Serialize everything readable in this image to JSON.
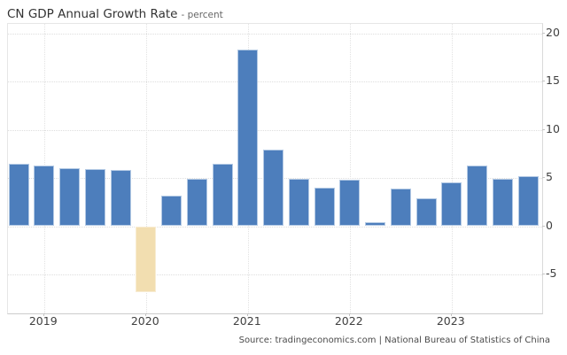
{
  "header": {
    "title": "CN GDP Annual Growth Rate",
    "subtitle": "- percent"
  },
  "source": {
    "text": "Source: tradingeconomics.com | National Bureau of Statistics of China"
  },
  "chart_data": {
    "type": "bar",
    "title": "CN GDP Annual Growth Rate",
    "unit": "percent",
    "x": [
      "2018-Q4",
      "2019-Q1",
      "2019-Q2",
      "2019-Q3",
      "2019-Q4",
      "2020-Q1",
      "2020-Q2",
      "2020-Q3",
      "2020-Q4",
      "2021-Q1",
      "2021-Q2",
      "2021-Q3",
      "2021-Q4",
      "2022-Q1",
      "2022-Q2",
      "2022-Q3",
      "2022-Q4",
      "2023-Q1",
      "2023-Q2",
      "2023-Q3",
      "2023-Q4"
    ],
    "values": [
      6.5,
      6.3,
      6.0,
      5.9,
      5.8,
      -6.8,
      3.2,
      4.9,
      6.5,
      18.3,
      7.9,
      4.9,
      4.0,
      4.8,
      0.4,
      3.9,
      2.9,
      4.5,
      6.3,
      4.9,
      5.2
    ],
    "series_name": "GDP Annual Growth Rate YoY",
    "xlabel": "",
    "ylabel": "percent",
    "ylim": [
      -9,
      21
    ],
    "yticks": [
      20,
      15,
      10,
      5,
      0,
      -5
    ],
    "xtick_labels": [
      "2019",
      "2020",
      "2021",
      "2022",
      "2023"
    ],
    "grid": true,
    "legend": "none",
    "colors": {
      "positive": "#4d7ebc",
      "positive_border": "#b3c9e4",
      "negative": "#f2deb0",
      "negative_border": "#f8ecd2",
      "gridline": "#dedede",
      "axis_text": "#404040"
    }
  }
}
